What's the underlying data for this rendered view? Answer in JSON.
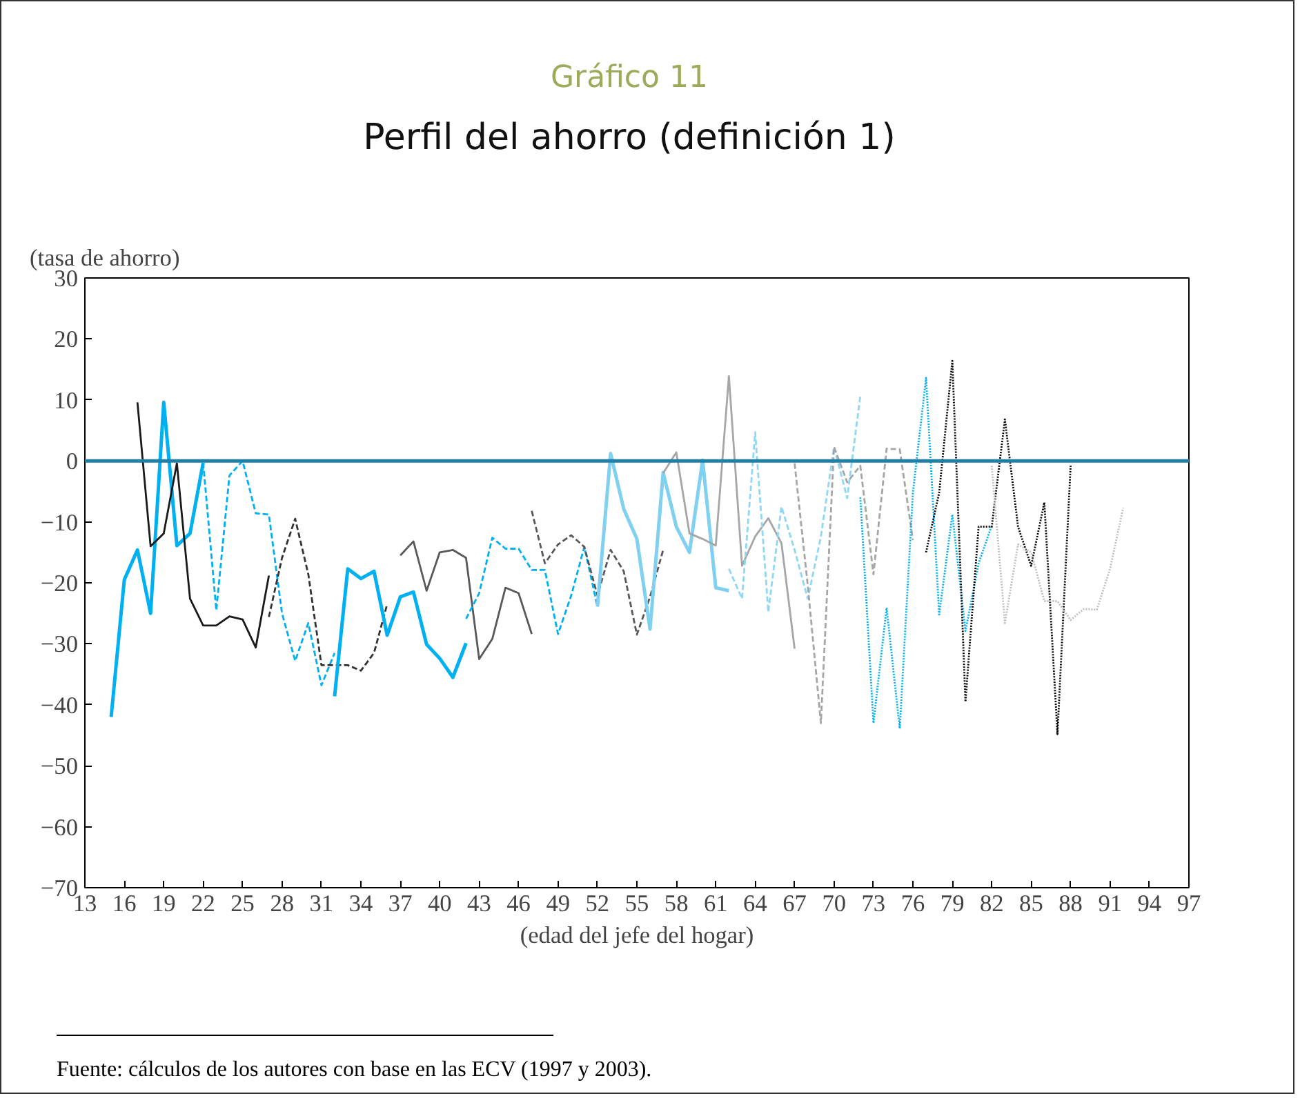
{
  "chart_data": {
    "type": "line",
    "title": "Gráfico 11",
    "subtitle": "Perfil del ahorro (definición 1)",
    "ylabel": "(tasa de ahorro)",
    "xlabel": "(edad del jefe del hogar)",
    "annotations": [
      "Fuente: cálculos de los autores con base en las ECV (1997 y 2003)."
    ],
    "xlim": [
      13,
      97
    ],
    "xticks": [
      13,
      16,
      19,
      22,
      25,
      28,
      31,
      34,
      37,
      40,
      43,
      46,
      49,
      52,
      55,
      58,
      61,
      64,
      67,
      70,
      73,
      76,
      79,
      82,
      85,
      88,
      91,
      94,
      97
    ],
    "ylim": [
      -70,
      30
    ],
    "yticks": [
      -70,
      -60,
      -50,
      -40,
      -30,
      -20,
      -10,
      0,
      10,
      20,
      30
    ],
    "grid": false,
    "marker": "none",
    "ref_lines": [
      {
        "axis": "y",
        "value": 0,
        "color": "#1f7fa6",
        "line_style": "solid"
      }
    ],
    "series": [
      {
        "color": "#00b0f0",
        "line_style": "solid",
        "x": [
          15,
          16,
          17,
          18,
          19,
          20,
          21,
          22
        ],
        "values": [
          -42,
          -19.5,
          -14.6,
          -25,
          9.6,
          -13.9,
          -11.9,
          -0.3
        ]
      },
      {
        "color": "#1a1a1a",
        "line_style": "solid",
        "x": [
          17,
          18,
          19,
          20,
          21,
          22,
          23,
          24,
          25,
          26,
          27
        ],
        "values": [
          9.6,
          -14,
          -11.9,
          -0.4,
          -22.6,
          -27,
          -27,
          -25.5,
          -26,
          -30.6,
          -18.8
        ]
      },
      {
        "color": "#00b0f0",
        "line_style": "dashed",
        "x": [
          22,
          23,
          24,
          25,
          26,
          27,
          28,
          29,
          30,
          31,
          32
        ],
        "values": [
          -0.3,
          -24.5,
          -2.4,
          0,
          -8.6,
          -8.8,
          -25,
          -32.8,
          -26.6,
          -36.8,
          -31.5
        ]
      },
      {
        "color": "#333333",
        "line_style": "dashed",
        "x": [
          27,
          28,
          29,
          30,
          31,
          32,
          33,
          34,
          35,
          36
        ],
        "values": [
          -25.6,
          -15.9,
          -9.5,
          -18.6,
          -33.5,
          -33.5,
          -33.5,
          -34.4,
          -31.5,
          -23.5
        ]
      },
      {
        "color": "#00b0f0",
        "line_style": "solid",
        "x": [
          32,
          33,
          34,
          35,
          36,
          37,
          38,
          39,
          40,
          41,
          42
        ],
        "values": [
          -38.6,
          -17.7,
          -19.3,
          -18.1,
          -28.6,
          -22.3,
          -21.5,
          -30.1,
          -32.4,
          -35.5,
          -29.9
        ]
      },
      {
        "color": "#595959",
        "line_style": "solid",
        "x": [
          37,
          38,
          39,
          40,
          41,
          42,
          43,
          44,
          45,
          46,
          47
        ],
        "values": [
          -15.5,
          -13.2,
          -21.3,
          -15,
          -14.6,
          -15.9,
          -32.5,
          -29.2,
          -20.8,
          -21.7,
          -28.4
        ]
      },
      {
        "color": "#00b0f0",
        "line_style": "dashed",
        "x": [
          42,
          43,
          44,
          45,
          46,
          47,
          48,
          49,
          50,
          51,
          52
        ],
        "values": [
          -25.9,
          -21.7,
          -12.6,
          -14.4,
          -14.4,
          -17.9,
          -17.9,
          -28.4,
          -22.1,
          -14.1,
          -23.9
        ]
      },
      {
        "color": "#595959",
        "line_style": "dashed",
        "x": [
          47,
          48,
          49,
          50,
          51,
          52,
          53,
          54,
          55,
          56,
          57
        ],
        "values": [
          -8.2,
          -16.8,
          -13.7,
          -12.2,
          -14.1,
          -22.1,
          -14.6,
          -18.1,
          -28.5,
          -22.3,
          -14.6
        ]
      },
      {
        "color": "#80d0f2",
        "line_style": "solid",
        "x": [
          52,
          53,
          54,
          55,
          56,
          57,
          58,
          59,
          60,
          61,
          62
        ],
        "values": [
          -23.9,
          1.2,
          -7.9,
          -12.8,
          -27.6,
          -1.9,
          -10.8,
          -15,
          0.1,
          -20.8,
          -21.3
        ]
      },
      {
        "color": "#a6a6a6",
        "line_style": "solid",
        "x": [
          57,
          58,
          59,
          60,
          61,
          62,
          63,
          64,
          65,
          66,
          67
        ],
        "values": [
          -2,
          1.4,
          -11.9,
          -12.8,
          -13.9,
          13.9,
          -17.2,
          -12.4,
          -9.4,
          -13.5,
          -30.8
        ]
      },
      {
        "color": "#8fd8f5",
        "line_style": "dashed",
        "x": [
          62,
          63,
          64,
          65,
          66,
          67,
          68,
          69,
          70,
          71,
          72
        ],
        "values": [
          -17.7,
          -22.6,
          4.7,
          -24.8,
          -7.5,
          -14.6,
          -22.6,
          -12.4,
          2.3,
          -6.1,
          10.7
        ]
      },
      {
        "color": "#a6a6a6",
        "line_style": "dashed",
        "x": [
          67,
          68,
          69,
          70,
          71,
          72,
          73,
          74,
          75,
          76
        ],
        "values": [
          -0.4,
          -20.4,
          -43,
          2.3,
          -3.5,
          -0.8,
          -18.6,
          2,
          1.9,
          -13
        ]
      },
      {
        "color": "#00b0f0",
        "line_style": "dotted",
        "x": [
          72,
          73,
          74,
          75,
          76,
          77,
          78,
          79,
          80,
          81,
          82
        ],
        "values": [
          -6,
          -43,
          -24.1,
          -43.9,
          -5.2,
          13.6,
          -25.2,
          -8.8,
          -27.9,
          -16.8,
          -10.6
        ]
      },
      {
        "color": "#000000",
        "line_style": "dotted",
        "x": [
          77,
          78,
          79,
          80,
          81,
          82,
          83,
          84,
          85,
          86,
          87,
          88
        ],
        "values": [
          -15,
          -5.2,
          16.4,
          -39.5,
          -10.8,
          -10.8,
          6.8,
          -10.8,
          -17.2,
          -6.8,
          -44.8,
          -0.8
        ]
      },
      {
        "color": "#bfbfbf",
        "line_style": "dotted",
        "x": [
          82,
          83,
          84,
          85,
          86,
          87,
          88,
          89,
          90,
          91,
          92
        ],
        "values": [
          -0.8,
          -26.6,
          -13.7,
          -15,
          -23,
          -23,
          -26.1,
          -24.3,
          -24.4,
          -17.7,
          -7.7
        ]
      }
    ]
  }
}
